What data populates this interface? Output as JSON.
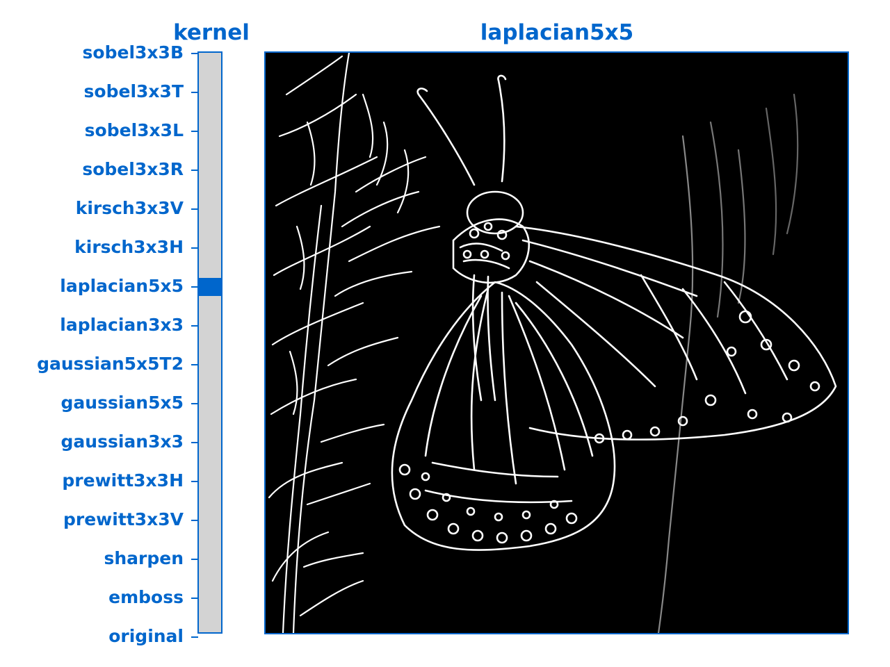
{
  "kernel_title": "kernel",
  "image_title": "laplacian5x5",
  "kernel_options": [
    "sobel3x3B",
    "sobel3x3T",
    "sobel3x3L",
    "sobel3x3R",
    "kirsch3x3V",
    "kirsch3x3H",
    "laplacian5x5",
    "laplacian3x3",
    "gaussian5x5T2",
    "gaussian5x5",
    "gaussian3x3",
    "prewitt3x3H",
    "prewitt3x3V",
    "sharpen",
    "emboss",
    "original"
  ],
  "selected_index": 6,
  "colors": {
    "accent": "#0066cc",
    "track": "#d3d3d3",
    "image_bg": "#000000",
    "edges": "#ffffff"
  },
  "image_content": "butterfly-edge-map"
}
